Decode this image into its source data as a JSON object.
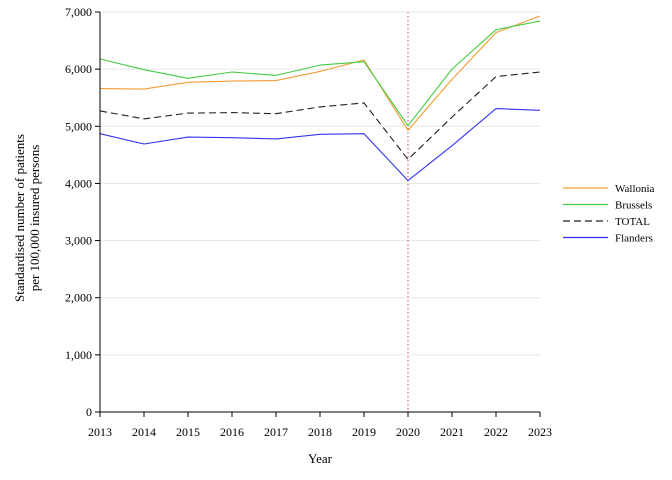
{
  "chart_data": {
    "type": "line",
    "xlabel": "Year",
    "ylabel_lines": [
      "Standardised number of patients",
      "per 100,000 insured persons"
    ],
    "x": [
      "2013",
      "2014",
      "2015",
      "2016",
      "2017",
      "2018",
      "2019",
      "2020",
      "2021",
      "2022",
      "2023"
    ],
    "x_tick_labels": [
      "2013",
      "2014",
      "2015",
      "2016",
      "2017",
      "2018",
      "2019",
      "2020",
      "2021",
      "2022",
      "2023"
    ],
    "ylim": [
      0,
      7000
    ],
    "y_ticks": [
      0,
      1000,
      2000,
      3000,
      4000,
      5000,
      6000,
      7000
    ],
    "y_tick_labels": [
      "0",
      "1,000",
      "2,000",
      "3,000",
      "4,000",
      "5,000",
      "6,000",
      "7,000"
    ],
    "grid": true,
    "legend_position": "right",
    "reference_line": {
      "x": "2020",
      "color": "#e0607a",
      "style": "dotted"
    },
    "series": [
      {
        "name": "Wallonia",
        "color": "#f39c32",
        "dash": "solid",
        "values": [
          5660,
          5650,
          5770,
          5790,
          5800,
          5960,
          6160,
          4930,
          5820,
          6640,
          6930
        ]
      },
      {
        "name": "Brussels",
        "color": "#44cc44",
        "dash": "solid",
        "values": [
          6180,
          5990,
          5840,
          5950,
          5890,
          6070,
          6130,
          5010,
          6000,
          6690,
          6840
        ]
      },
      {
        "name": "TOTAL",
        "color": "#222222",
        "dash": "dashed",
        "values": [
          5270,
          5130,
          5230,
          5240,
          5220,
          5340,
          5410,
          4420,
          5160,
          5870,
          5950
        ]
      },
      {
        "name": "Flanders",
        "color": "#3333ee",
        "dash": "solid",
        "values": [
          4870,
          4690,
          4810,
          4800,
          4780,
          4860,
          4870,
          4050,
          4660,
          5310,
          5280
        ]
      }
    ]
  }
}
